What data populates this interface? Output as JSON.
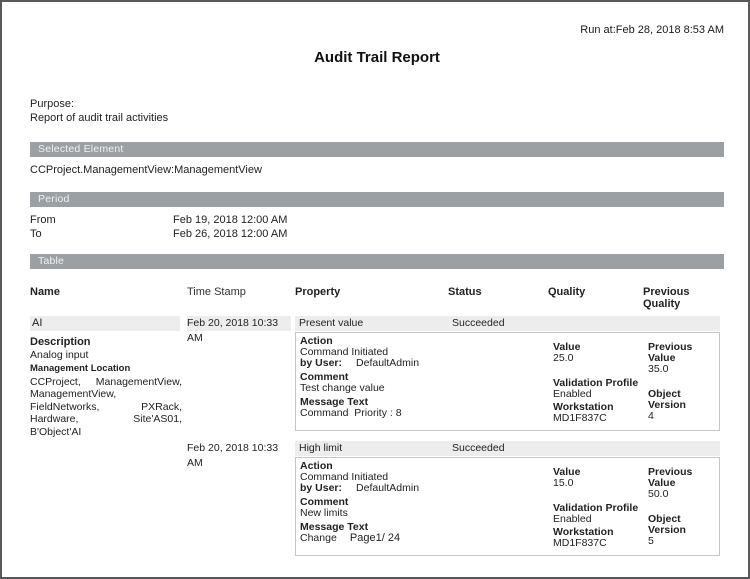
{
  "colors": {
    "section_bar": "#9aa0a3",
    "section_bar_text": "#f2f2f2",
    "row_bg": "#ededed",
    "detail_border": "#c6c6c6",
    "page_border": "#58595b"
  },
  "header": {
    "run_at": "Run at:Feb 28, 2018 8:53 AM",
    "title": "Audit Trail Report"
  },
  "purpose": {
    "label": "Purpose:",
    "text": "Report of audit trail activities"
  },
  "selected_element": {
    "title": "Selected Element",
    "value": "CCProject.ManagementView:ManagementView"
  },
  "period": {
    "title": "Period",
    "from_label": "From",
    "from": "Feb 19, 2018 12:00 AM",
    "to_label": "To",
    "to": "Feb 26, 2018 12:00 AM"
  },
  "table": {
    "title": "Table",
    "headers": {
      "name": "Name",
      "time_stamp": "Time Stamp",
      "property": "Property",
      "status": "Status",
      "quality": "Quality",
      "previous_quality": "Previous Quality"
    },
    "labels": {
      "description": "Description",
      "management_location": "Management Location",
      "action": "Action",
      "by_user": "by User:",
      "comment": "Comment",
      "message_text": "Message Text",
      "value": "Value",
      "previous_value": "Previous Value",
      "validation_profile": "Validation Profile",
      "object_version": "Object Version",
      "workstation": "Workstation"
    },
    "entries": [
      {
        "name": "AI",
        "time_stamp": "Feb 20, 2018 10:33 AM",
        "description": "Analog input",
        "management_location": "CCProject, ManagementView, ManagementView, FieldNetworks, PXRack, Hardware, Site'AS01, B'Object'AI",
        "property": "Present value",
        "status": "Succeeded",
        "action": "Command Initiated",
        "by_user": "DefaultAdmin",
        "comment": "Test change value",
        "message_text": "Command  Priority : 8",
        "value": "25.0",
        "previous_value": "35.0",
        "validation_profile": "Enabled",
        "object_version": "4",
        "workstation": "MD1F837C"
      },
      {
        "time_stamp": "Feb 20, 2018 10:33 AM",
        "property": "High limit",
        "status": "Succeeded",
        "action": "Command Initiated",
        "by_user": "DefaultAdmin",
        "comment": "New limits",
        "message_text": "Change",
        "value": "15.0",
        "previous_value": "50.0",
        "validation_profile": "Enabled",
        "object_version": "5",
        "workstation": "MD1F837C"
      }
    ]
  },
  "footer": {
    "page": "Page1/ 24"
  }
}
